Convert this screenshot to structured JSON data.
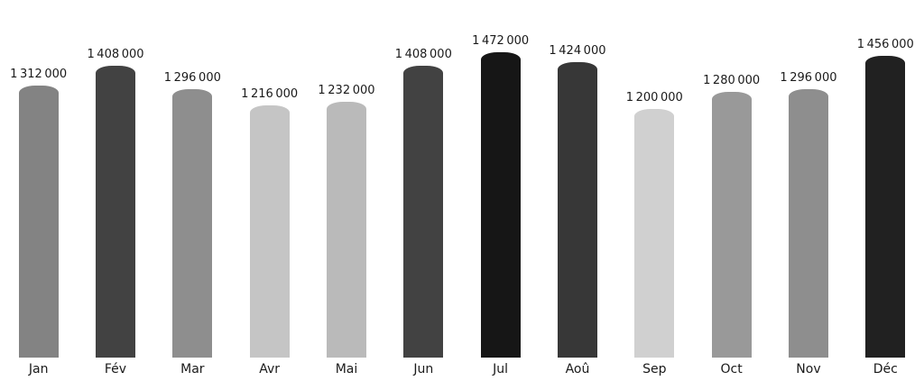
{
  "chart_data": {
    "type": "bar",
    "title": "",
    "xlabel": "",
    "ylabel": "",
    "categories": [
      "Jan",
      "Fév",
      "Mar",
      "Avr",
      "Mai",
      "Jun",
      "Jul",
      "Aoû",
      "Sep",
      "Oct",
      "Nov",
      "Déc"
    ],
    "values": [
      1312000,
      1408000,
      1296000,
      1216000,
      1232000,
      1408000,
      1472000,
      1424000,
      1200000,
      1280000,
      1296000,
      1456000
    ],
    "value_labels": [
      "1 312 000",
      "1 408 000",
      "1 296 000",
      "1 216 000",
      "1 232 000",
      "1 408 000",
      "1 472 000",
      "1 424 000",
      "1 200 000",
      "1 280 000",
      "1 296 000",
      "1 456 000"
    ],
    "bar_colors": [
      "#838383",
      "#424242",
      "#8e8e8e",
      "#c5c5c5",
      "#bababa",
      "#424242",
      "#161616",
      "#373737",
      "#d0d0d0",
      "#999999",
      "#8e8e8e",
      "#212121"
    ],
    "ylim": [
      0,
      1472000
    ],
    "grid": false,
    "legend": "none",
    "axes_hidden": true,
    "background": "#ffffff",
    "text_color": "#1a1a1a"
  }
}
